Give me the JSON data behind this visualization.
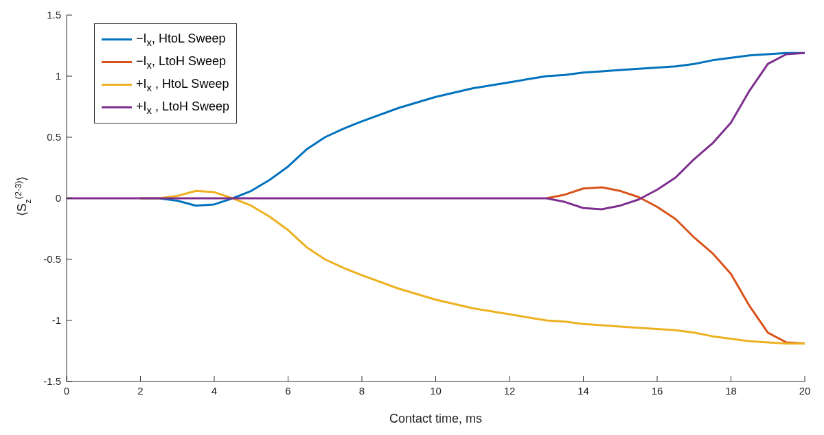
{
  "chart_data": {
    "type": "line",
    "xlabel": "Contact time, ms",
    "ylabel": "⟨S$_{z}$$^{(2-3)}$⟩",
    "x": [
      0,
      1,
      2,
      2.5,
      3,
      3.5,
      4,
      4.5,
      5,
      5.5,
      6,
      6.5,
      7,
      7.5,
      8,
      9,
      10,
      11,
      12,
      13,
      13.5,
      14,
      14.5,
      15,
      15.5,
      16,
      16.5,
      17,
      17.5,
      18,
      18.5,
      19,
      19.5,
      20
    ],
    "series": [
      {
        "name": "−I$_{x}$, HtoL Sweep",
        "color": "#0072bd",
        "values": [
          null,
          null,
          0,
          0,
          -0.02,
          -0.06,
          -0.05,
          0,
          0.06,
          0.15,
          0.26,
          0.4,
          0.5,
          0.57,
          0.63,
          0.74,
          0.83,
          0.9,
          0.95,
          1.0,
          1.01,
          1.03,
          1.04,
          1.05,
          1.06,
          1.07,
          1.08,
          1.1,
          1.13,
          1.15,
          1.17,
          1.18,
          1.19,
          1.19
        ]
      },
      {
        "name": "−I$_{x}$, LtoH Sweep",
        "color": "#d95319",
        "values": [
          null,
          null,
          null,
          null,
          null,
          null,
          null,
          null,
          null,
          null,
          null,
          null,
          null,
          null,
          null,
          null,
          null,
          null,
          null,
          0,
          0.03,
          0.08,
          0.09,
          0.06,
          0.01,
          -0.07,
          -0.17,
          -0.32,
          -0.45,
          -0.62,
          -0.88,
          -1.1,
          -1.18,
          -1.19
        ]
      },
      {
        "name": "+I$_{x}$ , HtoL Sweep",
        "color": "#edb120",
        "values": [
          null,
          null,
          0,
          0,
          0.02,
          0.06,
          0.05,
          0,
          -0.06,
          -0.15,
          -0.26,
          -0.4,
          -0.5,
          -0.57,
          -0.63,
          -0.74,
          -0.83,
          -0.9,
          -0.95,
          -1.0,
          -1.01,
          -1.03,
          -1.04,
          -1.05,
          -1.06,
          -1.07,
          -1.08,
          -1.1,
          -1.13,
          -1.15,
          -1.17,
          -1.18,
          -1.19,
          -1.19
        ]
      },
      {
        "name": "+I$_{x}$ , LtoH Sweep",
        "color": "#7e2f8e",
        "values": [
          0,
          0,
          0,
          0,
          0,
          0,
          0,
          0,
          0,
          0,
          0,
          0,
          0,
          0,
          0,
          0,
          0,
          0,
          0,
          0,
          -0.03,
          -0.08,
          -0.09,
          -0.06,
          -0.01,
          0.07,
          0.17,
          0.32,
          0.45,
          0.62,
          0.88,
          1.1,
          1.18,
          1.19
        ]
      }
    ],
    "xlim": [
      0,
      20
    ],
    "xticks": [
      0,
      2,
      4,
      6,
      8,
      10,
      12,
      14,
      16,
      18,
      20
    ],
    "ylim": [
      -1.5,
      1.5
    ],
    "yticks": [
      -1.5,
      -1,
      -0.5,
      0,
      0.5,
      1,
      1.5
    ],
    "grid": false,
    "legend": "top left",
    "marker": "none",
    "line_style": "solid"
  }
}
